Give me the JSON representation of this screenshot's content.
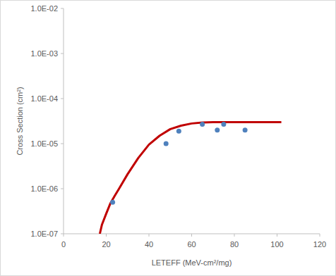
{
  "chart_data": {
    "type": "scatter",
    "x_label": "LETEFF (MeV-cm²/mg)",
    "y_label": "Cross Section (cm²)",
    "log": "y",
    "grid": false,
    "xlim": [
      0,
      120
    ],
    "xticks": [
      0,
      20,
      40,
      60,
      80,
      100,
      120
    ],
    "ylim": [
      1e-07,
      0.01
    ],
    "yticks": [
      {
        "value": 1e-07,
        "label": "1.0E-07"
      },
      {
        "value": 1e-06,
        "label": "1.0E-06"
      },
      {
        "value": 1e-05,
        "label": "1.0E-05"
      },
      {
        "value": 0.0001,
        "label": "1.0E-04"
      },
      {
        "value": 0.001,
        "label": "1.0E-03"
      },
      {
        "value": 0.01,
        "label": "1.0E-02"
      }
    ],
    "series": [
      {
        "type": "line",
        "color": "#c00000",
        "line_style": "solid",
        "x": [
          17,
          18,
          20,
          22,
          24,
          26,
          30,
          35,
          40,
          45,
          50,
          55,
          60,
          65,
          70,
          80,
          90,
          102
        ],
        "values": [
          1e-07,
          1.6e-07,
          2.8e-07,
          4.8e-07,
          7e-07,
          1e-06,
          2.1e-06,
          4.8e-06,
          9.5e-06,
          1.5e-05,
          2.1e-05,
          2.5e-05,
          2.8e-05,
          2.95e-05,
          3e-05,
          3e-05,
          3e-05,
          3e-05
        ]
      },
      {
        "type": "scatter",
        "color": "#4f81bd",
        "marker": "circle",
        "x": [
          23,
          48,
          54,
          65,
          72,
          75,
          85
        ],
        "values": [
          5e-07,
          1e-05,
          1.9e-05,
          2.7e-05,
          2e-05,
          2.7e-05,
          2e-05
        ]
      }
    ]
  }
}
